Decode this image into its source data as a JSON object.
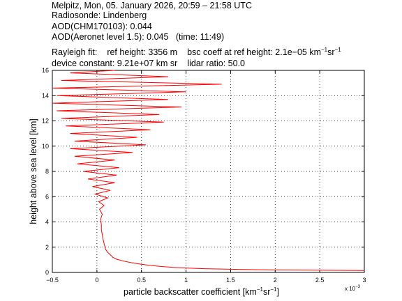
{
  "header": {
    "line1": "Melpitz, Mon, 05. January 2026, 20:59 – 21:58 UTC",
    "line2": "Radiosonde: Lindenberg",
    "line3": "AOD(CHM170103): 0.044",
    "line4a": "AOD(Aeronet level 1.5): 0.045",
    "line4b": "(time: 11:49)",
    "rayleigh_label": "Rayleigh fit:",
    "ref_height": "ref height: 3356 m",
    "bsc_coeff_pre": "bsc coeff at ref height: 2.1e−05 km",
    "bsc_unit_km_exp": "−1",
    "bsc_unit_sr": "sr",
    "bsc_unit_sr_exp": "−1",
    "device_constant": "device constant: 9.21e+07 km sr",
    "lidar_ratio": "lidar ratio: 50.0"
  },
  "chart_data": {
    "type": "line",
    "xlabel_pre": "particle backscatter coefficient [km",
    "xlabel_exp1": "−1",
    "xlabel_mid": "sr",
    "xlabel_exp2": "−1",
    "xlabel_post": "]",
    "ylabel": "height above sea level [km]",
    "x_multiplier": "x 10",
    "x_multiplier_exp": "−3",
    "xlim": [
      -0.5,
      3
    ],
    "ylim": [
      0,
      16
    ],
    "x_ticks": [
      "−0.5",
      "0",
      "0.5",
      "1",
      "1.5",
      "2",
      "2.5",
      "3"
    ],
    "x_tick_values": [
      -0.5,
      0,
      0.5,
      1,
      1.5,
      2,
      2.5,
      3
    ],
    "y_ticks": [
      "0",
      "2",
      "4",
      "6",
      "8",
      "10",
      "12",
      "14",
      "16"
    ],
    "y_tick_values": [
      0,
      2,
      4,
      6,
      8,
      10,
      12,
      14,
      16
    ],
    "grid": true,
    "series": [
      {
        "color": "#ff0000",
        "x_unit_scale": 0.001,
        "points": [
          [
            3.0,
            0.15
          ],
          [
            2.85,
            0.16
          ],
          [
            2.0,
            0.2
          ],
          [
            1.6,
            0.24
          ],
          [
            1.2,
            0.3
          ],
          [
            0.9,
            0.38
          ],
          [
            0.75,
            0.45
          ],
          [
            0.6,
            0.55
          ],
          [
            0.5,
            0.65
          ],
          [
            0.4,
            0.75
          ],
          [
            0.3,
            0.9
          ],
          [
            0.22,
            1.05
          ],
          [
            0.18,
            1.2
          ],
          [
            0.15,
            1.4
          ],
          [
            0.12,
            1.6
          ],
          [
            0.1,
            1.8
          ],
          [
            0.09,
            2.0
          ],
          [
            0.08,
            2.3
          ],
          [
            0.07,
            2.6
          ],
          [
            0.06,
            3.0
          ],
          [
            0.05,
            3.4
          ],
          [
            0.05,
            3.8
          ],
          [
            0.04,
            4.2
          ],
          [
            0.06,
            4.6
          ],
          [
            0.03,
            5.0
          ],
          [
            0.08,
            5.3
          ],
          [
            0.02,
            5.6
          ],
          [
            0.12,
            5.9
          ],
          [
            -0.02,
            6.2
          ],
          [
            0.15,
            6.5
          ],
          [
            -0.05,
            6.8
          ],
          [
            0.2,
            7.1
          ],
          [
            -0.1,
            7.4
          ],
          [
            0.22,
            7.7
          ],
          [
            -0.15,
            8.0
          ],
          [
            0.25,
            8.3
          ],
          [
            -0.22,
            8.6
          ],
          [
            0.2,
            8.9
          ],
          [
            -0.25,
            9.2
          ],
          [
            0.4,
            9.5
          ],
          [
            -0.3,
            9.8
          ],
          [
            0.55,
            10.1
          ],
          [
            -0.25,
            10.4
          ],
          [
            0.45,
            10.7
          ],
          [
            -0.3,
            11.0
          ],
          [
            0.6,
            11.3
          ],
          [
            -0.35,
            11.6
          ],
          [
            0.75,
            11.9
          ],
          [
            -0.4,
            12.2
          ],
          [
            0.7,
            12.5
          ],
          [
            -0.45,
            12.8
          ],
          [
            0.95,
            13.1
          ],
          [
            -0.5,
            13.4
          ],
          [
            0.8,
            13.7
          ],
          [
            -0.45,
            14.0
          ],
          [
            1.0,
            14.3
          ],
          [
            -0.5,
            14.6
          ],
          [
            1.4,
            14.9
          ],
          [
            -0.4,
            15.2
          ],
          [
            0.8,
            15.5
          ],
          [
            -0.3,
            15.8
          ],
          [
            0.2,
            16.0
          ]
        ]
      }
    ]
  }
}
